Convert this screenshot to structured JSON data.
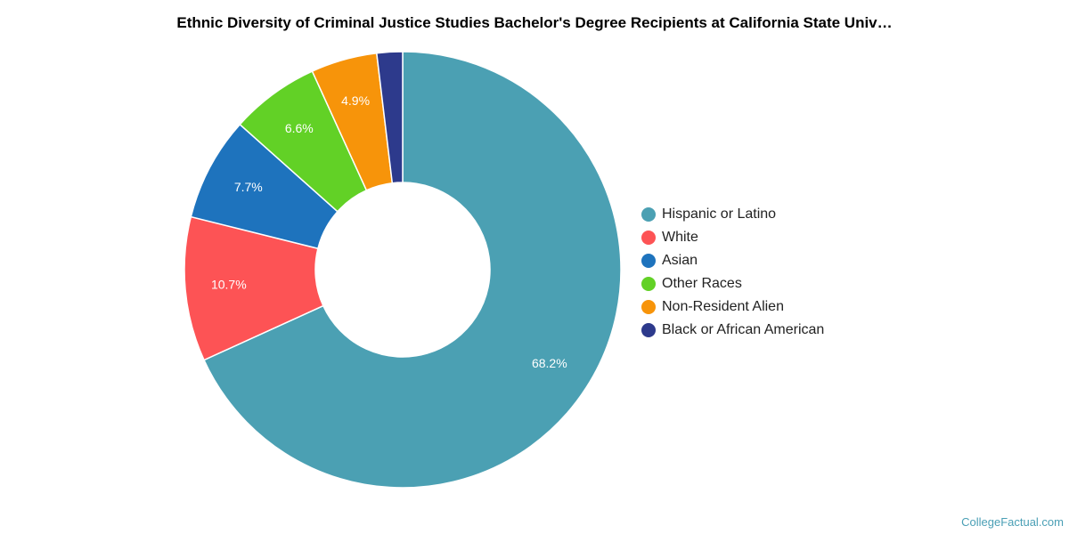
{
  "chart_data": {
    "type": "pie",
    "title": "Ethnic Diversity of Criminal Justice Studies Bachelor's Degree Recipients at California State Univ…",
    "unit": "%",
    "slices": [
      {
        "label": "Hispanic or Latino",
        "value": 68.2,
        "display": "68.2%",
        "color": "#4ba0b3"
      },
      {
        "label": "White",
        "value": 10.7,
        "display": "10.7%",
        "color": "#fd5355"
      },
      {
        "label": "Asian",
        "value": 7.7,
        "display": "7.7%",
        "color": "#1e73bd"
      },
      {
        "label": "Other Races",
        "value": 6.6,
        "display": "6.6%",
        "color": "#62d126"
      },
      {
        "label": "Non-Resident Alien",
        "value": 4.9,
        "display": "4.9%",
        "color": "#f7940a"
      },
      {
        "label": "Black or African American",
        "value": 1.9,
        "display": "",
        "color": "#2d3a8c"
      }
    ],
    "legend_position": "right",
    "donut": true
  },
  "footer": {
    "source": "CollegeFactual.com"
  }
}
